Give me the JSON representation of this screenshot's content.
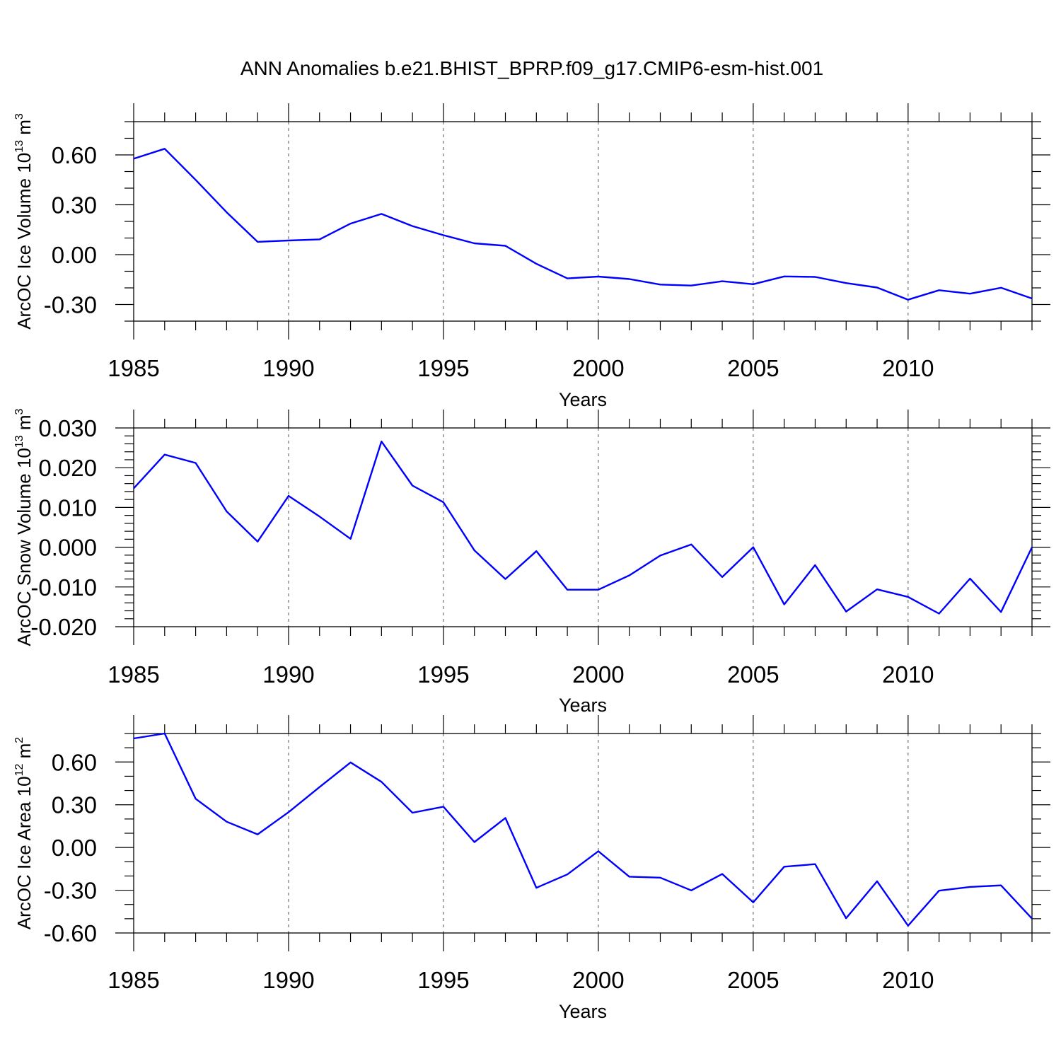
{
  "title": "ANN Anomalies b.e21.BHIST_BPRP.f09_g17.CMIP6-esm-hist.001",
  "colors": {
    "series": "#0000ff",
    "grid": "#555555",
    "axis": "#000000"
  },
  "chart_data": [
    {
      "type": "line",
      "ylabel": {
        "text": "ArcOC Ice Volume 10",
        "exp": "13",
        "unit": " m",
        "unit_exp": "3"
      },
      "xlabel": "Years",
      "xlim": [
        1985,
        2014
      ],
      "ylim": [
        -0.4,
        0.8
      ],
      "x_ticks": [
        1985,
        1990,
        1995,
        2000,
        2005,
        2010
      ],
      "y_ticks": [
        -0.3,
        0.0,
        0.3,
        0.6
      ],
      "y_tick_labels": [
        "-0.30",
        "0.00",
        "0.30",
        "0.60"
      ],
      "y_minor_step": 0.1,
      "grid": "vertical dashed at major x ticks",
      "series": [
        {
          "x": [
            1985,
            1986,
            1987,
            1988,
            1989,
            1990,
            1991,
            1992,
            1993,
            1994,
            1995,
            1996,
            1997,
            1998,
            1999,
            2000,
            2001,
            2002,
            2003,
            2004,
            2005,
            2006,
            2007,
            2008,
            2009,
            2010,
            2011,
            2012,
            2013,
            2014
          ],
          "values": [
            0.577,
            0.637,
            0.45,
            0.255,
            0.077,
            0.085,
            0.092,
            0.187,
            0.245,
            0.172,
            0.117,
            0.068,
            0.053,
            -0.055,
            -0.143,
            -0.132,
            -0.147,
            -0.18,
            -0.186,
            -0.16,
            -0.178,
            -0.131,
            -0.134,
            -0.171,
            -0.198,
            -0.271,
            -0.214,
            -0.235,
            -0.199,
            -0.264
          ]
        }
      ]
    },
    {
      "type": "line",
      "ylabel": {
        "text": "ArcOC Snow Volume 10",
        "exp": "13",
        "unit": " m",
        "unit_exp": "3"
      },
      "xlabel": "Years",
      "xlim": [
        1985,
        2014
      ],
      "ylim": [
        -0.02,
        0.03
      ],
      "x_ticks": [
        1985,
        1990,
        1995,
        2000,
        2005,
        2010
      ],
      "y_ticks": [
        -0.02,
        -0.01,
        0.0,
        0.01,
        0.02,
        0.03
      ],
      "y_tick_labels": [
        "-0.020",
        "-0.010",
        "0.000",
        "0.010",
        "0.020",
        "0.030"
      ],
      "y_minor_step": 0.002,
      "grid": "vertical dashed at major x ticks",
      "series": [
        {
          "x": [
            1985,
            1986,
            1987,
            1988,
            1989,
            1990,
            1991,
            1992,
            1993,
            1994,
            1995,
            1996,
            1997,
            1998,
            1999,
            2000,
            2001,
            2002,
            2003,
            2004,
            2005,
            2006,
            2007,
            2008,
            2009,
            2010,
            2011,
            2012,
            2013,
            2014
          ],
          "values": [
            0.0148,
            0.0233,
            0.0212,
            0.009,
            0.0014,
            0.0129,
            0.0077,
            0.0021,
            0.0266,
            0.0155,
            0.0113,
            -0.0008,
            -0.008,
            -0.001,
            -0.0107,
            -0.0107,
            -0.0071,
            -0.0021,
            0.0007,
            -0.0075,
            0.0,
            -0.0144,
            -0.0045,
            -0.0162,
            -0.0106,
            -0.0125,
            -0.0167,
            -0.0079,
            -0.0163,
            0.0
          ]
        }
      ]
    },
    {
      "type": "line",
      "ylabel": {
        "text": "ArcOC Ice Area 10",
        "exp": "12",
        "unit": " m",
        "unit_exp": "2"
      },
      "xlabel": "Years",
      "xlim": [
        1985,
        2014
      ],
      "ylim": [
        -0.6,
        0.8
      ],
      "x_ticks": [
        1985,
        1990,
        1995,
        2000,
        2005,
        2010
      ],
      "y_ticks": [
        -0.6,
        -0.3,
        0.0,
        0.3,
        0.6
      ],
      "y_tick_labels": [
        "-0.60",
        "-0.30",
        "0.00",
        "0.30",
        "0.60"
      ],
      "y_minor_step": 0.1,
      "grid": "vertical dashed at major x ticks",
      "series": [
        {
          "x": [
            1985,
            1986,
            1987,
            1988,
            1989,
            1990,
            1991,
            1992,
            1993,
            1994,
            1995,
            1996,
            1997,
            1998,
            1999,
            2000,
            2001,
            2002,
            2003,
            2004,
            2005,
            2006,
            2007,
            2008,
            2009,
            2010,
            2011,
            2012,
            2013,
            2014
          ],
          "values": [
            0.765,
            0.8,
            0.342,
            0.181,
            0.092,
            0.248,
            0.424,
            0.597,
            0.461,
            0.244,
            0.286,
            0.038,
            0.207,
            -0.283,
            -0.189,
            -0.026,
            -0.205,
            -0.212,
            -0.301,
            -0.186,
            -0.385,
            -0.135,
            -0.117,
            -0.496,
            -0.237,
            -0.549,
            -0.303,
            -0.277,
            -0.266,
            -0.499
          ]
        }
      ]
    }
  ]
}
